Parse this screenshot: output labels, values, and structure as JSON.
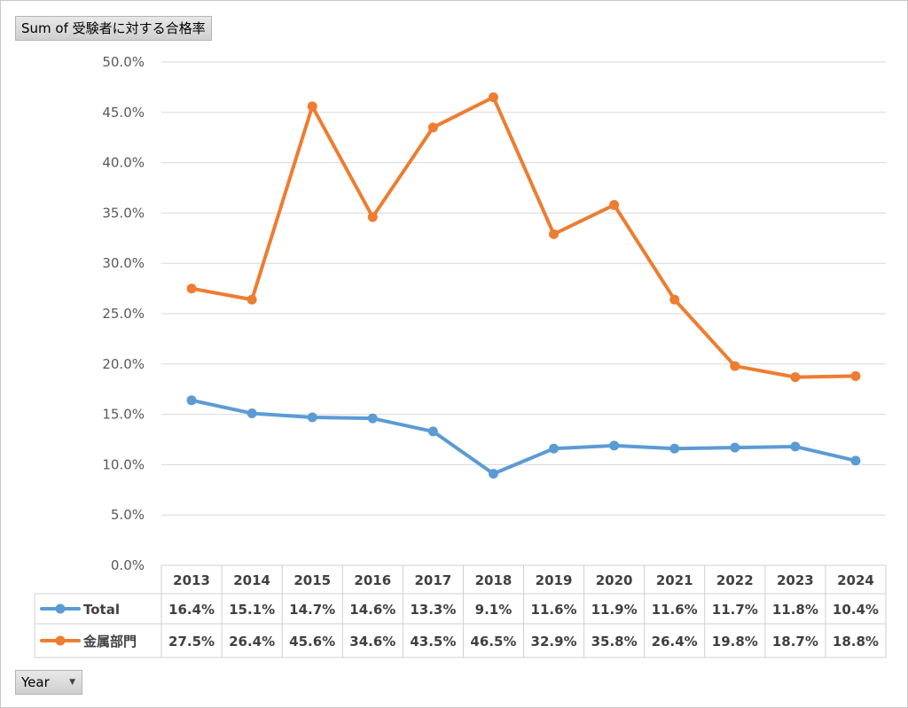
{
  "pivot": {
    "value_field": "Sum of 受験者に対する合格率",
    "axis_field": "Year",
    "axis_dropdown_icon": "chevron-down-icon"
  },
  "chart_data": {
    "type": "line",
    "categories": [
      "2013",
      "2014",
      "2015",
      "2016",
      "2017",
      "2018",
      "2019",
      "2020",
      "2021",
      "2022",
      "2023",
      "2024"
    ],
    "series": [
      {
        "name": "Total",
        "color": "#5b9bd5",
        "values": [
          16.4,
          15.1,
          14.7,
          14.6,
          13.3,
          9.1,
          11.6,
          11.9,
          11.6,
          11.7,
          11.8,
          10.4
        ],
        "labels": [
          "16.4%",
          "15.1%",
          "14.7%",
          "14.6%",
          "13.3%",
          "9.1%",
          "11.6%",
          "11.9%",
          "11.6%",
          "11.7%",
          "11.8%",
          "10.4%"
        ]
      },
      {
        "name": "金属部門",
        "color": "#ed7d31",
        "values": [
          27.5,
          26.4,
          45.6,
          34.6,
          43.5,
          46.5,
          32.9,
          35.8,
          26.4,
          19.8,
          18.7,
          18.8
        ],
        "labels": [
          "27.5%",
          "26.4%",
          "45.6%",
          "34.6%",
          "43.5%",
          "46.5%",
          "32.9%",
          "35.8%",
          "26.4%",
          "19.8%",
          "18.7%",
          "18.8%"
        ]
      }
    ],
    "ylim": [
      0,
      50
    ],
    "yticks": [
      "0.0%",
      "5.0%",
      "10.0%",
      "15.0%",
      "20.0%",
      "25.0%",
      "30.0%",
      "35.0%",
      "40.0%",
      "45.0%",
      "50.0%"
    ],
    "grid": true,
    "legend": "data-table"
  }
}
